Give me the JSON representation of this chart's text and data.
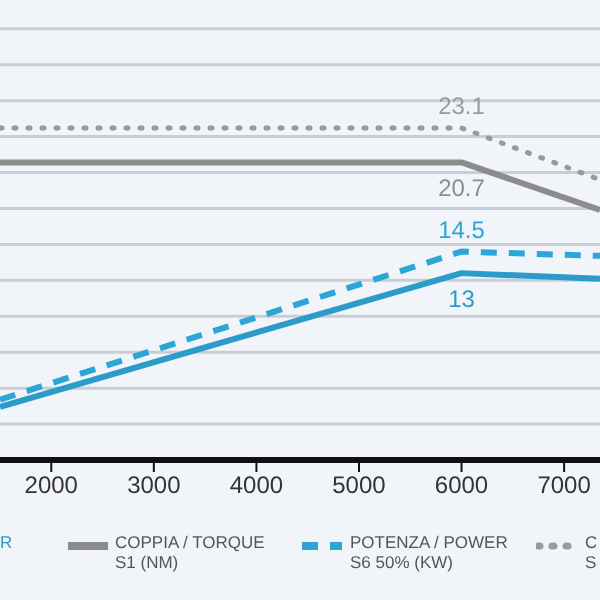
{
  "chart_data": {
    "type": "line",
    "x": [
      1500,
      6000,
      7350
    ],
    "xlim": [
      1500,
      7350
    ],
    "xticks": [
      2000,
      3000,
      4000,
      5000,
      6000,
      7000
    ],
    "ylim": [
      0,
      32
    ],
    "yticks": [
      {
        "value": 2.5,
        "label": null
      },
      {
        "value": 5,
        "label": null
      },
      {
        "value": 7.5,
        "label": null
      },
      {
        "value": 10,
        "label": null
      },
      {
        "value": 12.5,
        "label": null
      },
      {
        "value": 15,
        "label": null
      },
      {
        "value": 17.5,
        "label": null
      },
      {
        "value": 20,
        "label": null
      },
      {
        "value": 22.5,
        "label": null
      },
      {
        "value": 25,
        "label": null
      },
      {
        "value": 27.5,
        "label": null
      },
      {
        "value": 30,
        "label": null
      }
    ],
    "tick_labels": "x",
    "grid": "y",
    "legend": "bottom",
    "marker": "none",
    "series": [
      {
        "name": "R",
        "color": "#2b9cc8",
        "line_style": "solid",
        "values": [
          3.7,
          13,
          12.6
        ],
        "value_labels": [
          null,
          "13",
          null
        ]
      },
      {
        "name": "COPPIA / TORQUE\nS1 (NM)",
        "color": "#8c8c8c",
        "line_style": "solid",
        "values": [
          20.7,
          20.7,
          17.4
        ],
        "value_labels": [
          null,
          "20.7",
          null
        ]
      },
      {
        "name": "POTENZA / POWER\nS6 50% (KW)",
        "color": "#2ba6d6",
        "line_style": "dashed",
        "values": [
          4.2,
          14.5,
          14.2
        ],
        "value_labels": [
          null,
          "14.5",
          null
        ]
      },
      {
        "name": "C\nS",
        "color": "#9a9a9a",
        "line_style": "dotted",
        "values": [
          23.1,
          23.1,
          19.5
        ],
        "value_labels": [
          null,
          "23.1",
          null
        ]
      }
    ]
  }
}
